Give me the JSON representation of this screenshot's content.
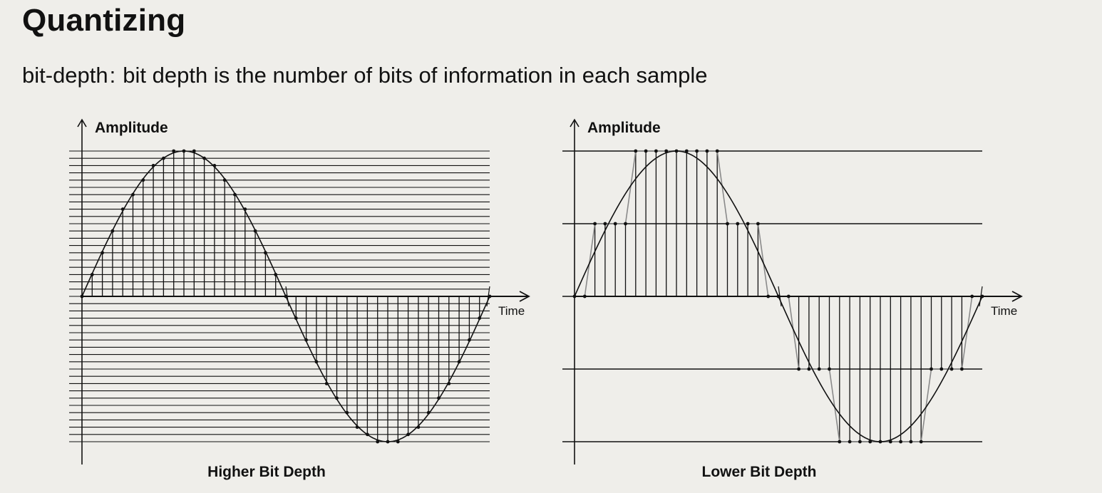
{
  "slide": {
    "title": "Quantizing",
    "subtitle_term": "bit-depth",
    "subtitle_separator": ":",
    "subtitle_text": "bit depth is the number of bits of information in each sample"
  },
  "panels": [
    {
      "id": "higher",
      "y_axis_label": "Amplitude",
      "x_axis_label": "Time",
      "caption": "Higher Bit Depth",
      "quantization_levels": 41,
      "sample_count": 40
    },
    {
      "id": "lower",
      "y_axis_label": "Amplitude",
      "x_axis_label": "Time",
      "caption": "Lower Bit Depth",
      "quantization_levels": 5,
      "sample_count": 40
    }
  ],
  "colors": {
    "background": "#efeeea",
    "ink": "#111111",
    "staircase": "#8a8a8a"
  }
}
